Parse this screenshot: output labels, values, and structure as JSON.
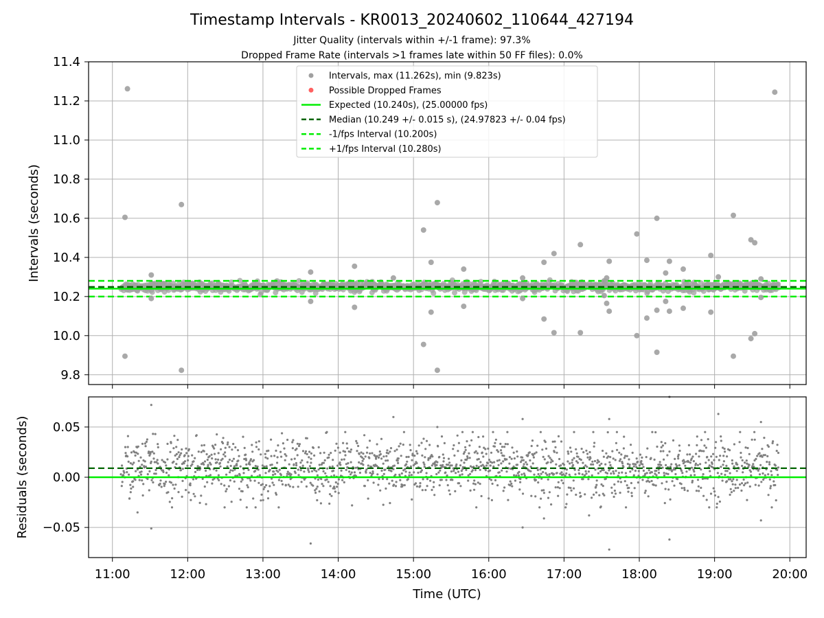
{
  "title": "Timestamp Intervals - KR0013_20240602_110644_427194",
  "subtitle1": "Jitter Quality (intervals within +/-1 frame): 97.3%",
  "subtitle2": "Dropped Frame Rate (intervals >1 frames late within 50 FF files): 0.0%",
  "colors": {
    "points": "#808080",
    "dropped": "#ff0000",
    "expected": "#00ee00",
    "median": "#006400",
    "interval": "#00ee00",
    "grid": "#b0b0b0"
  },
  "chart_data": [
    {
      "type": "scatter",
      "name": "intervals",
      "ylabel": "Intervals (seconds)",
      "xlabel": "",
      "ylim": [
        9.75,
        11.4
      ],
      "xlim": [
        "10:41",
        "20:13"
      ],
      "grid": true,
      "yticks": [
        9.8,
        10.0,
        10.2,
        10.4,
        10.6,
        10.8,
        11.0,
        11.2,
        11.4
      ],
      "ytick_labels": [
        "9.8",
        "10.0",
        "10.2",
        "10.4",
        "10.6",
        "10.8",
        "11.0",
        "11.2",
        "11.4"
      ],
      "legend_position": "top-center",
      "legend": [
        {
          "label": "Intervals, max (11.262s), min (9.823s)",
          "kind": "dot",
          "color": "#a0a0a0"
        },
        {
          "label": "Possible Dropped Frames",
          "kind": "dot",
          "color": "#ff6060"
        },
        {
          "label": "Expected (10.240s), (25.00000 fps)",
          "kind": "line",
          "color": "#00ee00"
        },
        {
          "label": "Median (10.249 +/- 0.015 s), (24.97823 +/- 0.04 fps)",
          "kind": "dash",
          "color": "#006400"
        },
        {
          "label": "-1/fps Interval (10.200s)",
          "kind": "dash",
          "color": "#00ee00"
        },
        {
          "label": "+1/fps Interval (10.280s)",
          "kind": "dash",
          "color": "#00ee00"
        }
      ],
      "reference_lines": {
        "expected": 10.24,
        "median": 10.249,
        "minus_one_fps": 10.2,
        "plus_one_fps": 10.28
      },
      "band": {
        "center": 10.249,
        "spread": 0.015
      },
      "outliers": [
        {
          "x": "11:10",
          "y": 10.605
        },
        {
          "x": "11:10",
          "y": 9.895
        },
        {
          "x": "11:12",
          "y": 11.262
        },
        {
          "x": "11:31",
          "y": 10.31
        },
        {
          "x": "11:31",
          "y": 10.19
        },
        {
          "x": "11:55",
          "y": 10.67
        },
        {
          "x": "11:55",
          "y": 9.823
        },
        {
          "x": "13:38",
          "y": 10.325
        },
        {
          "x": "13:38",
          "y": 10.175
        },
        {
          "x": "14:13",
          "y": 10.355
        },
        {
          "x": "14:13",
          "y": 10.145
        },
        {
          "x": "14:44",
          "y": 10.295
        },
        {
          "x": "15:08",
          "y": 10.54
        },
        {
          "x": "15:08",
          "y": 9.955
        },
        {
          "x": "15:14",
          "y": 10.375
        },
        {
          "x": "15:14",
          "y": 10.12
        },
        {
          "x": "15:19",
          "y": 10.68
        },
        {
          "x": "15:19",
          "y": 9.823
        },
        {
          "x": "15:40",
          "y": 10.34
        },
        {
          "x": "15:40",
          "y": 10.15
        },
        {
          "x": "16:27",
          "y": 10.295
        },
        {
          "x": "16:27",
          "y": 10.19
        },
        {
          "x": "16:44",
          "y": 10.375
        },
        {
          "x": "16:44",
          "y": 10.085
        },
        {
          "x": "16:52",
          "y": 10.42
        },
        {
          "x": "16:52",
          "y": 10.015
        },
        {
          "x": "17:13",
          "y": 10.465
        },
        {
          "x": "17:13",
          "y": 10.015
        },
        {
          "x": "17:32",
          "y": 10.28
        },
        {
          "x": "17:32",
          "y": 10.205
        },
        {
          "x": "17:34",
          "y": 10.295
        },
        {
          "x": "17:34",
          "y": 10.165
        },
        {
          "x": "17:36",
          "y": 10.38
        },
        {
          "x": "17:36",
          "y": 10.125
        },
        {
          "x": "17:58",
          "y": 10.52
        },
        {
          "x": "17:58",
          "y": 10.0
        },
        {
          "x": "18:06",
          "y": 10.385
        },
        {
          "x": "18:06",
          "y": 10.09
        },
        {
          "x": "18:14",
          "y": 10.6
        },
        {
          "x": "18:14",
          "y": 9.915
        },
        {
          "x": "18:14",
          "y": 10.13
        },
        {
          "x": "18:21",
          "y": 10.32
        },
        {
          "x": "18:21",
          "y": 10.175
        },
        {
          "x": "18:24",
          "y": 10.38
        },
        {
          "x": "18:24",
          "y": 10.125
        },
        {
          "x": "18:35",
          "y": 10.34
        },
        {
          "x": "18:35",
          "y": 10.14
        },
        {
          "x": "18:57",
          "y": 10.41
        },
        {
          "x": "18:57",
          "y": 10.12
        },
        {
          "x": "19:03",
          "y": 10.3
        },
        {
          "x": "19:15",
          "y": 10.615
        },
        {
          "x": "19:15",
          "y": 9.895
        },
        {
          "x": "19:29",
          "y": 10.49
        },
        {
          "x": "19:29",
          "y": 9.985
        },
        {
          "x": "19:32",
          "y": 10.475
        },
        {
          "x": "19:32",
          "y": 10.01
        },
        {
          "x": "19:37",
          "y": 10.29
        },
        {
          "x": "19:37",
          "y": 10.195
        },
        {
          "x": "19:48",
          "y": 11.245
        }
      ]
    },
    {
      "type": "scatter",
      "name": "residuals",
      "ylabel": "Residuals (seconds)",
      "xlabel": "Time (UTC)",
      "ylim": [
        -0.08,
        0.08
      ],
      "xlim": [
        "10:41",
        "20:13"
      ],
      "grid": true,
      "yticks": [
        -0.05,
        0.0,
        0.05
      ],
      "ytick_labels": [
        "−0.05",
        "0.00",
        "0.05"
      ],
      "xtick_labels": [
        "11:00",
        "12:00",
        "13:00",
        "14:00",
        "15:00",
        "16:00",
        "17:00",
        "18:00",
        "19:00",
        "20:00"
      ],
      "reference_lines": {
        "expected": 0.0,
        "median": 0.009
      },
      "band": {
        "center": 0.009,
        "spread": 0.015
      },
      "outliers": [
        {
          "x": "11:31",
          "y": 0.072
        },
        {
          "x": "11:31",
          "y": -0.051
        },
        {
          "x": "11:20",
          "y": -0.035
        },
        {
          "x": "13:38",
          "y": -0.066
        },
        {
          "x": "14:44",
          "y": 0.06
        },
        {
          "x": "15:19",
          "y": 0.05
        },
        {
          "x": "16:27",
          "y": 0.058
        },
        {
          "x": "16:27",
          "y": -0.05
        },
        {
          "x": "16:44",
          "y": -0.041
        },
        {
          "x": "17:36",
          "y": -0.072
        },
        {
          "x": "17:36",
          "y": 0.058
        },
        {
          "x": "18:24",
          "y": 0.08
        },
        {
          "x": "18:24",
          "y": -0.062
        },
        {
          "x": "19:03",
          "y": 0.063
        },
        {
          "x": "19:37",
          "y": 0.055
        },
        {
          "x": "19:37",
          "y": -0.043
        },
        {
          "x": "17:08",
          "y": 0.045
        },
        {
          "x": "17:20",
          "y": -0.038
        }
      ]
    }
  ]
}
